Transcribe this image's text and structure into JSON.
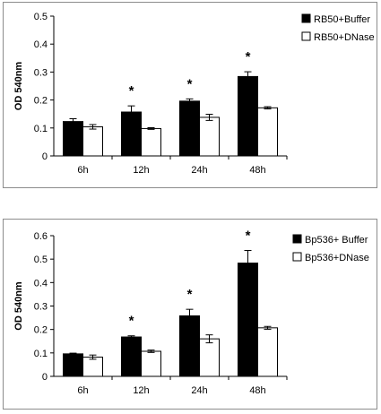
{
  "chart_data": [
    {
      "type": "bar",
      "ylabel": "OD 540nm",
      "ylim": [
        0,
        0.5
      ],
      "ytick_step": 0.1,
      "yticks": [
        "0",
        "0.1",
        "0.2",
        "0.3",
        "0.4",
        "0.5"
      ],
      "categories": [
        "6h",
        "12h",
        "24h",
        "48h"
      ],
      "series": [
        {
          "name": "RB50+Buffer",
          "color": "#000000",
          "values": [
            0.123,
            0.157,
            0.196,
            0.284
          ],
          "errors": [
            0.01,
            0.022,
            0.008,
            0.017
          ]
        },
        {
          "name": "RB50+DNase",
          "color": "#ffffff",
          "values": [
            0.104,
            0.098,
            0.138,
            0.172
          ],
          "errors": [
            0.008,
            0.003,
            0.011,
            0.004
          ]
        }
      ],
      "significance": [
        "",
        "*",
        "*",
        "*"
      ],
      "legend": "top-right",
      "grid": false
    },
    {
      "type": "bar",
      "ylabel": "OD 540nm",
      "ylim": [
        0,
        0.6
      ],
      "ytick_step": 0.1,
      "yticks": [
        "0",
        "0.1",
        "0.2",
        "0.3",
        "0.4",
        "0.5",
        "0.6"
      ],
      "categories": [
        "6h",
        "12h",
        "24h",
        "48h"
      ],
      "series": [
        {
          "name": "Bp536+ Buffer",
          "color": "#000000",
          "values": [
            0.096,
            0.168,
            0.258,
            0.483
          ],
          "errors": [
            0.003,
            0.005,
            0.028,
            0.054
          ]
        },
        {
          "name": "Bp536+DNase",
          "color": "#ffffff",
          "values": [
            0.082,
            0.107,
            0.16,
            0.207
          ],
          "errors": [
            0.009,
            0.005,
            0.017,
            0.006
          ]
        }
      ],
      "significance": [
        "",
        "*",
        "*",
        "*"
      ],
      "legend": "top-right",
      "grid": false
    }
  ]
}
